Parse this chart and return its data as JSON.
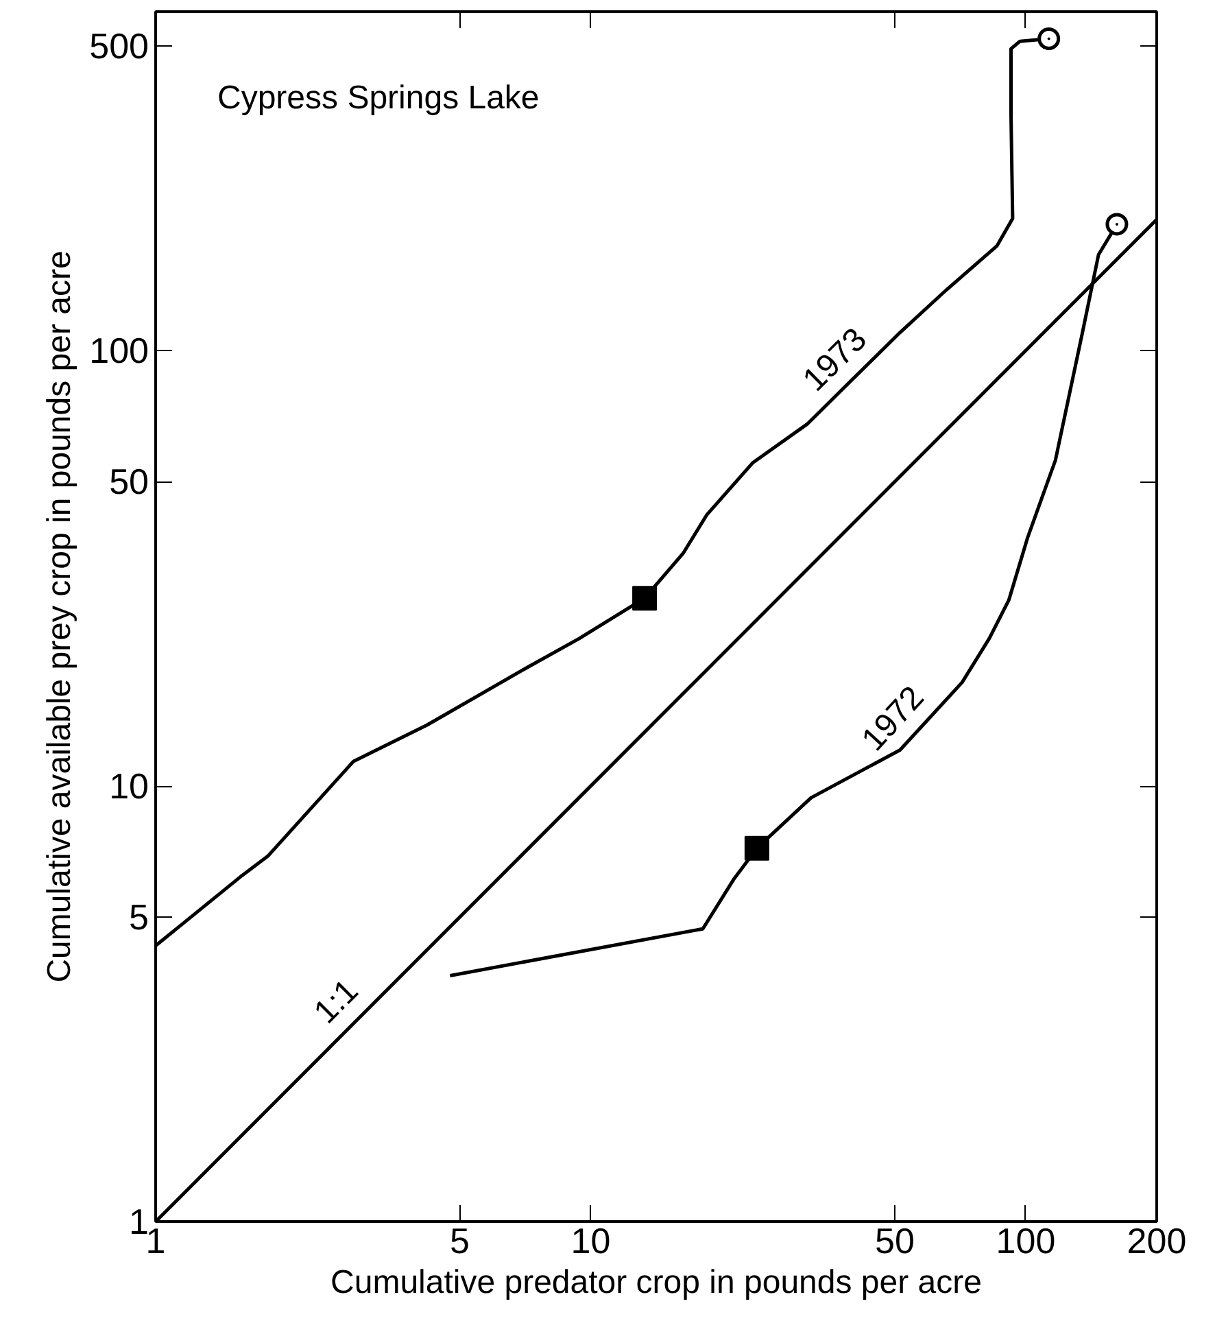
{
  "chart_data": {
    "type": "line",
    "title": "Cypress Springs Lake",
    "xlabel": "Cumulative predator crop in pounds per acre",
    "ylabel": "Cumulative available prey crop in pounds per acre",
    "log": "xy",
    "xlim": [
      1,
      200
    ],
    "ylim": [
      1,
      600
    ],
    "xticks": [
      1,
      5,
      10,
      50,
      100,
      200
    ],
    "yticks": [
      1,
      5,
      10,
      50,
      100,
      500
    ],
    "grid": false,
    "marker": "none",
    "line_style": "solid",
    "series": [
      {
        "name": "1973",
        "color": "#000000",
        "x": [
          1,
          1.57,
          1.81,
          2.85,
          4.2,
          7.2,
          9.4,
          13.3,
          16.3,
          18.5,
          23.6,
          31.4,
          51.4,
          65.8,
          85.9,
          93.3,
          92.5,
          92.5,
          97,
          113
        ],
        "values": [
          4.3,
          6.2,
          6.9,
          11.4,
          13.8,
          18.8,
          21.8,
          27,
          34.2,
          42,
          55.3,
          67.7,
          110,
          138,
          174,
          201,
          347,
          493,
          513,
          520
        ]
      },
      {
        "name": "1972",
        "color": "#000000",
        "x": [
          4.75,
          18.1,
          21.3,
          24.1,
          32.1,
          51.4,
          71.4,
          82.4,
          91.4,
          101,
          117,
          135,
          147,
          162
        ],
        "values": [
          3.67,
          4.7,
          6.1,
          7.2,
          9.4,
          12.1,
          17.3,
          21.8,
          26.7,
          37.2,
          56,
          110,
          166,
          195
        ]
      },
      {
        "name": "1:1",
        "color": "#000000",
        "x": [
          1,
          200
        ],
        "values": [
          1,
          200
        ]
      },
      {
        "type": "scatter",
        "marker": "square",
        "color": "#000000",
        "x": [
          13.3,
          24.1
        ],
        "values": [
          27,
          7.2
        ]
      },
      {
        "type": "scatter",
        "marker": "circle",
        "color": "#000000",
        "x": [
          113,
          162
        ],
        "values": [
          520,
          195
        ]
      }
    ]
  }
}
